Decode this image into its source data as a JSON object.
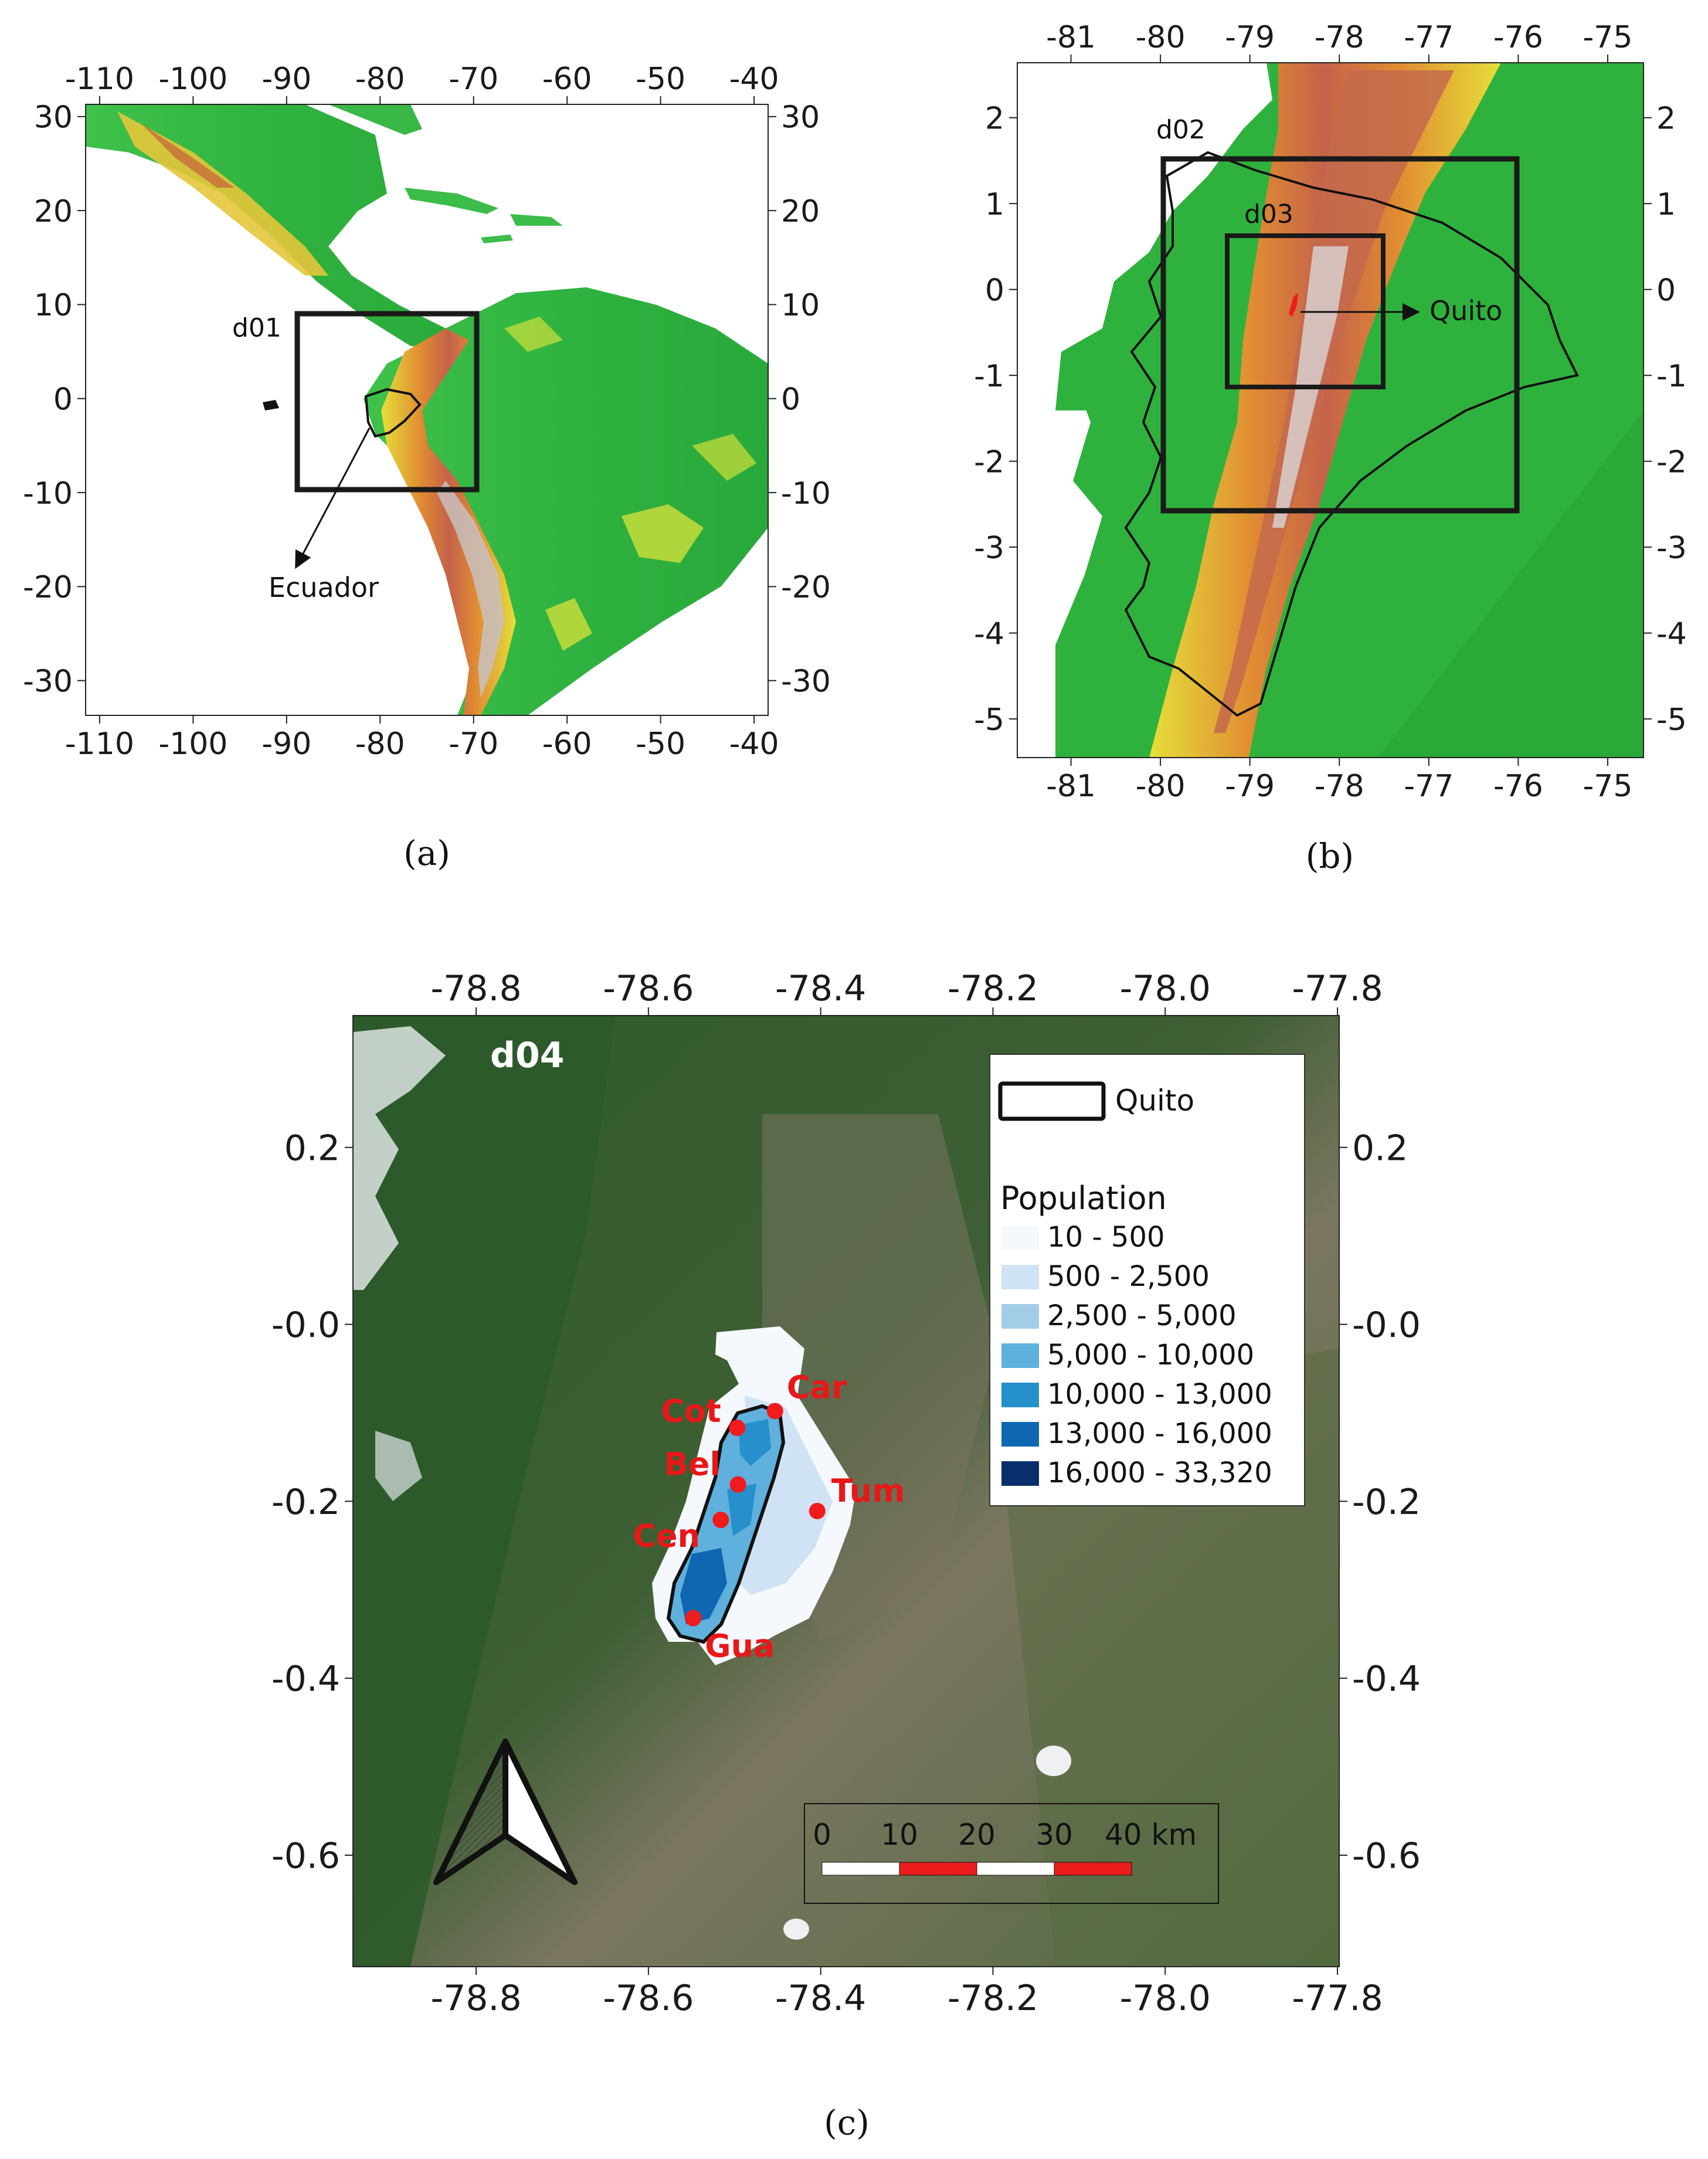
{
  "panels": {
    "a": {
      "caption": "(a)",
      "x_ticks": [
        -110,
        -100,
        -90,
        -80,
        -70,
        -60,
        -50,
        -40
      ],
      "y_ticks": [
        30,
        20,
        10,
        0,
        -10,
        -20,
        -30
      ],
      "domain_label": "d01",
      "country_label": "Ecuador"
    },
    "b": {
      "caption": "(b)",
      "x_ticks": [
        -81,
        -80,
        -79,
        -78,
        -77,
        -76,
        -75
      ],
      "y_ticks": [
        2,
        1,
        0,
        -1,
        -2,
        -3,
        -4,
        -5
      ],
      "domain_labels": [
        "d02",
        "d03"
      ],
      "city_label": "Quito"
    },
    "c": {
      "caption": "(c)",
      "x_ticks": [
        "-78.8",
        "-78.6",
        "-78.4",
        "-78.2",
        "-78.0",
        "-77.8"
      ],
      "y_ticks": [
        "0.2",
        "-0.0",
        "-0.2",
        "-0.4",
        "-0.6"
      ],
      "domain_label": "d04",
      "stations": [
        {
          "code": "Cot",
          "lon": -78.497,
          "lat": -0.117
        },
        {
          "code": "Car",
          "lon": -78.453,
          "lat": -0.098
        },
        {
          "code": "Bel",
          "lon": -78.496,
          "lat": -0.181
        },
        {
          "code": "Tum",
          "lon": -78.404,
          "lat": -0.211
        },
        {
          "code": "Cen",
          "lon": -78.516,
          "lat": -0.221
        },
        {
          "code": "Gua",
          "lon": -78.548,
          "lat": -0.332
        }
      ],
      "legend": {
        "boundary_label": "Quito",
        "title": "Population",
        "classes": [
          {
            "label": "10 - 500",
            "color": "#f5f9fe"
          },
          {
            "label": "500 - 2,500",
            "color": "#d0e3f4"
          },
          {
            "label": "2,500 - 5,000",
            "color": "#a3cde7"
          },
          {
            "label": "5,000 - 10,000",
            "color": "#5fb0dd"
          },
          {
            "label": "10,000 - 13,000",
            "color": "#2590cb"
          },
          {
            "label": "13,000 - 16,000",
            "color": "#0e67b0"
          },
          {
            "label": "16,000 - 33,320",
            "color": "#082f6b"
          }
        ]
      },
      "scale_bar": {
        "labels": [
          "0",
          "10",
          "20",
          "30",
          "40 km"
        ]
      }
    }
  },
  "colors": {
    "elevation_low": "#27b33a",
    "elevation_mid": "#f3e23a",
    "elevation_high": "#c05a3a",
    "elevation_peak": "#cfc7c5",
    "station": "#f01c1c",
    "satellite_base": "#3d5a34"
  }
}
